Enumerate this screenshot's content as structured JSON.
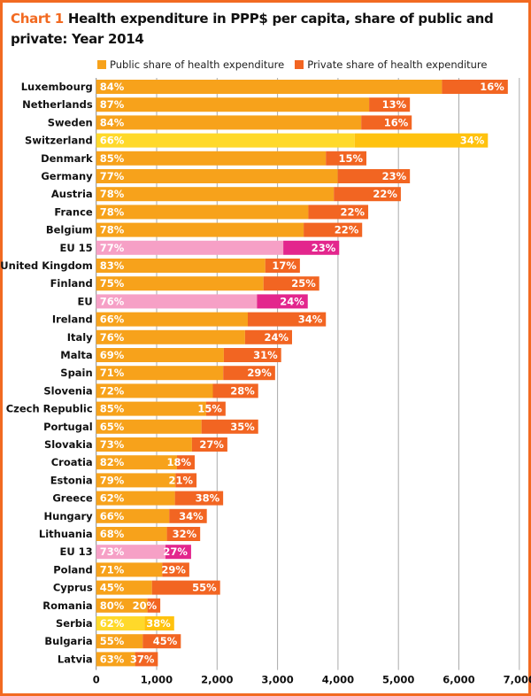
{
  "chart_data": {
    "type": "bar",
    "orientation": "horizontal",
    "stacked": true,
    "title_prefix": "Chart 1",
    "title": "Health expenditure in PPP$ per capita, share of public and private: Year 2014",
    "xlim": [
      0,
      7000
    ],
    "x_ticks": [
      "0",
      "1,000",
      "2,000",
      "3,000",
      "4,000",
      "5,000",
      "6,000",
      "7,000"
    ],
    "grid": "vertical",
    "legend_position": "top",
    "series": [
      {
        "name": "Public share of health expenditure",
        "color": "#f7a21b"
      },
      {
        "name": "Private share of health expenditure",
        "color": "#f26522"
      }
    ],
    "highlight_colors": {
      "default": [
        "#f7a21b",
        "#f26522"
      ],
      "non_eu": [
        "#ffd92a",
        "#ffc20e"
      ],
      "eu_aggregate": [
        "#f6a0c6",
        "#e3268d"
      ]
    },
    "categories": [
      {
        "label": "Luxembourg",
        "total": 6810,
        "public_pct": "84%",
        "private_pct": "16%",
        "group": "default"
      },
      {
        "label": "Netherlands",
        "total": 5190,
        "public_pct": "87%",
        "private_pct": "13%",
        "group": "default"
      },
      {
        "label": "Sweden",
        "total": 5220,
        "public_pct": "84%",
        "private_pct": "16%",
        "group": "default"
      },
      {
        "label": "Switzerland",
        "total": 6480,
        "public_pct": "66%",
        "private_pct": "34%",
        "group": "non_eu"
      },
      {
        "label": "Denmark",
        "total": 4470,
        "public_pct": "85%",
        "private_pct": "15%",
        "group": "default"
      },
      {
        "label": "Germany",
        "total": 5190,
        "public_pct": "77%",
        "private_pct": "23%",
        "group": "default"
      },
      {
        "label": "Austria",
        "total": 5040,
        "public_pct": "78%",
        "private_pct": "22%",
        "group": "default"
      },
      {
        "label": "France",
        "total": 4500,
        "public_pct": "78%",
        "private_pct": "22%",
        "group": "default"
      },
      {
        "label": "Belgium",
        "total": 4400,
        "public_pct": "78%",
        "private_pct": "22%",
        "group": "default"
      },
      {
        "label": "EU 15",
        "total": 4020,
        "public_pct": "77%",
        "private_pct": "23%",
        "group": "eu_aggregate"
      },
      {
        "label": "United Kingdom",
        "total": 3370,
        "public_pct": "83%",
        "private_pct": "17%",
        "group": "default"
      },
      {
        "label": "Finland",
        "total": 3690,
        "public_pct": "75%",
        "private_pct": "25%",
        "group": "default"
      },
      {
        "label": "EU",
        "total": 3500,
        "public_pct": "76%",
        "private_pct": "24%",
        "group": "eu_aggregate"
      },
      {
        "label": "Ireland",
        "total": 3800,
        "public_pct": "66%",
        "private_pct": "34%",
        "group": "default"
      },
      {
        "label": "Italy",
        "total": 3240,
        "public_pct": "76%",
        "private_pct": "24%",
        "group": "default"
      },
      {
        "label": "Malta",
        "total": 3060,
        "public_pct": "69%",
        "private_pct": "31%",
        "group": "default"
      },
      {
        "label": "Spain",
        "total": 2960,
        "public_pct": "71%",
        "private_pct": "29%",
        "group": "default"
      },
      {
        "label": "Slovenia",
        "total": 2680,
        "public_pct": "72%",
        "private_pct": "28%",
        "group": "default"
      },
      {
        "label": "Czech Republic",
        "total": 2140,
        "public_pct": "85%",
        "private_pct": "15%",
        "group": "default"
      },
      {
        "label": "Portugal",
        "total": 2680,
        "public_pct": "65%",
        "private_pct": "35%",
        "group": "default"
      },
      {
        "label": "Slovakia",
        "total": 2170,
        "public_pct": "73%",
        "private_pct": "27%",
        "group": "default"
      },
      {
        "label": "Croatia",
        "total": 1630,
        "public_pct": "82%",
        "private_pct": "18%",
        "group": "default"
      },
      {
        "label": "Estonia",
        "total": 1660,
        "public_pct": "79%",
        "private_pct": "21%",
        "group": "default"
      },
      {
        "label": "Greece",
        "total": 2100,
        "public_pct": "62%",
        "private_pct": "38%",
        "group": "default"
      },
      {
        "label": "Hungary",
        "total": 1830,
        "public_pct": "66%",
        "private_pct": "34%",
        "group": "default"
      },
      {
        "label": "Lithuania",
        "total": 1720,
        "public_pct": "68%",
        "private_pct": "32%",
        "group": "default"
      },
      {
        "label": "EU 13",
        "total": 1570,
        "public_pct": "73%",
        "private_pct": "27%",
        "group": "eu_aggregate"
      },
      {
        "label": "Poland",
        "total": 1540,
        "public_pct": "71%",
        "private_pct": "29%",
        "group": "default"
      },
      {
        "label": "Cyprus",
        "total": 2050,
        "public_pct": "45%",
        "private_pct": "55%",
        "group": "default"
      },
      {
        "label": "Romania",
        "total": 1060,
        "public_pct": "80%",
        "private_pct": "20%",
        "group": "default"
      },
      {
        "label": "Serbia",
        "total": 1290,
        "public_pct": "62%",
        "private_pct": "38%",
        "group": "non_eu"
      },
      {
        "label": "Bulgaria",
        "total": 1400,
        "public_pct": "55%",
        "private_pct": "45%",
        "group": "default"
      },
      {
        "label": "Latvia",
        "total": 1020,
        "public_pct": "63%",
        "private_pct": "37%",
        "group": "default"
      }
    ]
  }
}
